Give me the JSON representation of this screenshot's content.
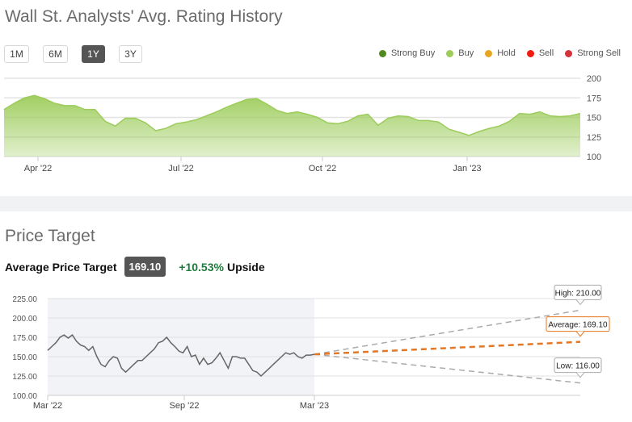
{
  "rating_section": {
    "title": "Wall St. Analysts' Avg. Rating History",
    "range_buttons": [
      {
        "label": "1M",
        "active": false
      },
      {
        "label": "6M",
        "active": false
      },
      {
        "label": "1Y",
        "active": true
      },
      {
        "label": "3Y",
        "active": false
      }
    ],
    "legend": [
      {
        "label": "Strong Buy",
        "color": "#4f8a1e"
      },
      {
        "label": "Buy",
        "color": "#9ccc5a"
      },
      {
        "label": "Hold",
        "color": "#e8a521"
      },
      {
        "label": "Sell",
        "color": "#f21b0f"
      },
      {
        "label": "Strong Sell",
        "color": "#d8313a"
      }
    ]
  },
  "price_section": {
    "title": "Price Target",
    "avg_label": "Average Price Target",
    "avg_value": "169.10",
    "upside_pct": "+10.53%",
    "upside_label": "Upside"
  },
  "chart_data": [
    {
      "type": "area",
      "ylim": [
        100,
        200
      ],
      "y_ticks": [
        "200",
        "175",
        "150",
        "125",
        "100"
      ],
      "x_ticks": [
        "Apr '22",
        "Jul '22",
        "Oct '22",
        "Jan '23"
      ],
      "grid": true,
      "color": "#9ccc5a",
      "values": [
        160,
        168,
        175,
        178,
        174,
        168,
        165,
        165,
        160,
        160,
        145,
        139,
        149,
        149,
        143,
        133,
        136,
        142,
        144,
        147,
        152,
        157,
        163,
        168,
        173,
        174,
        167,
        159,
        155,
        157,
        154,
        150,
        143,
        142,
        145,
        152,
        154,
        140,
        149,
        152,
        151,
        146,
        146,
        144,
        135,
        131,
        127,
        132,
        136,
        139,
        145,
        155,
        154,
        157,
        152,
        151,
        152,
        155
      ]
    },
    {
      "type": "line",
      "ylim": [
        100,
        225
      ],
      "y_ticks": [
        "225.00",
        "200.00",
        "175.00",
        "150.00",
        "125.00",
        "100.00"
      ],
      "x_ticks": [
        "Mar '22",
        "Sep '22",
        "Mar '23"
      ],
      "grid": true,
      "history_color": "#666666",
      "history": [
        158,
        163,
        168,
        175,
        178,
        174,
        178,
        170,
        165,
        163,
        158,
        163,
        150,
        140,
        137,
        145,
        150,
        148,
        135,
        130,
        135,
        140,
        145,
        145,
        150,
        155,
        160,
        168,
        170,
        175,
        168,
        163,
        157,
        155,
        163,
        150,
        152,
        140,
        148,
        140,
        142,
        148,
        155,
        145,
        135,
        150,
        150,
        148,
        148,
        140,
        132,
        130,
        125,
        130,
        135,
        140,
        145,
        150,
        155,
        153,
        155,
        150,
        148,
        152,
        152,
        153
      ],
      "forecast": {
        "start": 153,
        "high": {
          "label": "High: 210.00",
          "value": 210,
          "color": "#aaaaaa"
        },
        "average": {
          "label": "Average: 169.10",
          "value": 169.1,
          "color": "#e8761e"
        },
        "low": {
          "label": "Low: 116.00",
          "value": 116,
          "color": "#aaaaaa"
        }
      }
    }
  ]
}
